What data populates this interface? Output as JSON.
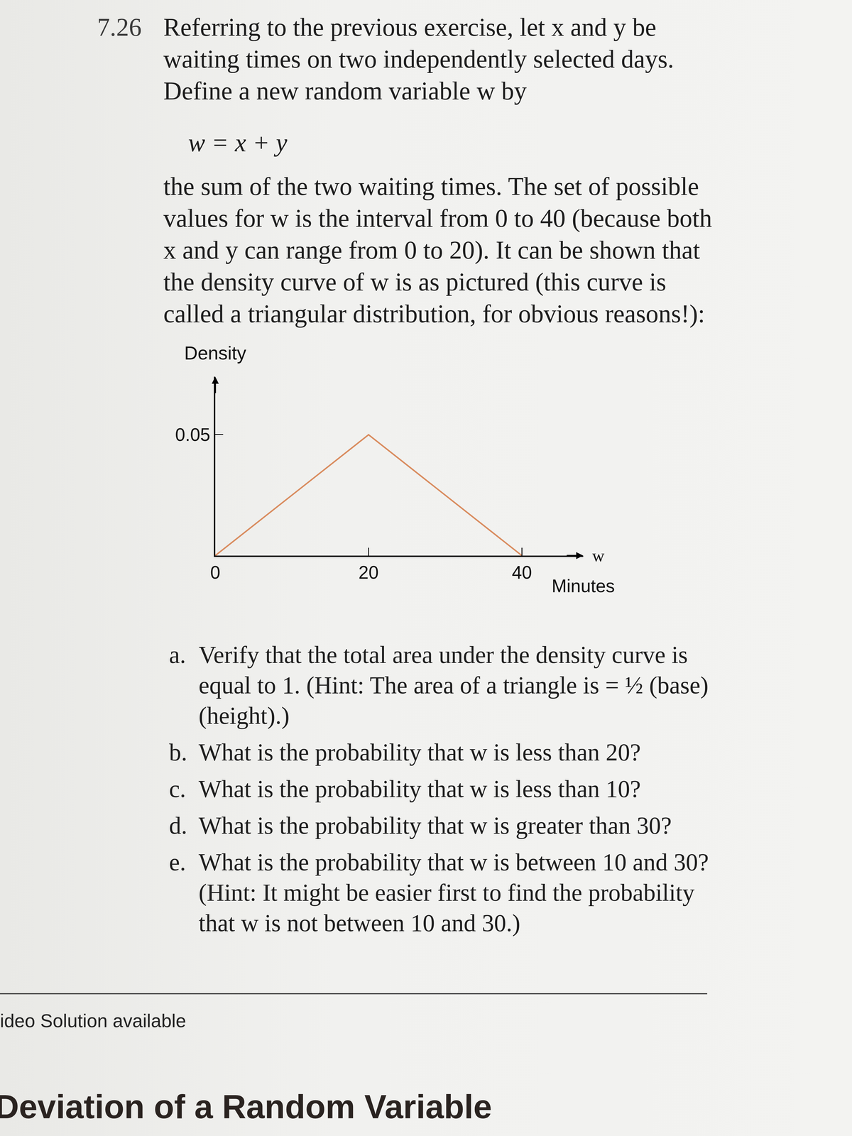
{
  "exercise": {
    "number": "7.26",
    "intro": "Referring to the previous exercise, let x and y be waiting times on two independently selected days. Define a new random variable w by",
    "formula": "w = x + y",
    "body": "the sum of the two waiting times. The set of possible values for w is the interval from 0 to 40 (because both x and y can range from 0 to 20). It can be shown that the density curve of w is as pictured (this curve is called a triangular distribution, for obvious reasons!):"
  },
  "chart_data": {
    "type": "line",
    "ylabel": "Density",
    "xlabel": "Minutes",
    "annotations": [
      {
        "text": "w"
      }
    ],
    "x": [
      0,
      20,
      40
    ],
    "values": [
      0,
      0.05,
      0
    ],
    "color": "#d98c5f",
    "xlim": [
      0,
      48
    ],
    "ylim": [
      0,
      0.074
    ],
    "xticks": [
      0,
      20,
      40
    ],
    "yticks": [
      0.05
    ],
    "grid": false
  },
  "parts": [
    {
      "label": "a.",
      "text": "Verify that the total area under the density curve is equal to 1. (Hint: The area of a triangle is = ½ (base)(height).)"
    },
    {
      "label": "b.",
      "text": "What is the probability that w is less than 20?"
    },
    {
      "label": "c.",
      "text": "What is the probability that w is less than 10?"
    },
    {
      "label": "d.",
      "text": "What is the probability that w is greater than 30?"
    },
    {
      "label": "e.",
      "text": "What is the probability that w is between 10 and 30? (Hint: It might be easier first to find the probability that w is not between 10 and 30.)"
    }
  ],
  "footer": {
    "note": "ideo Solution available",
    "heading": "Deviation of a Random Variable"
  }
}
